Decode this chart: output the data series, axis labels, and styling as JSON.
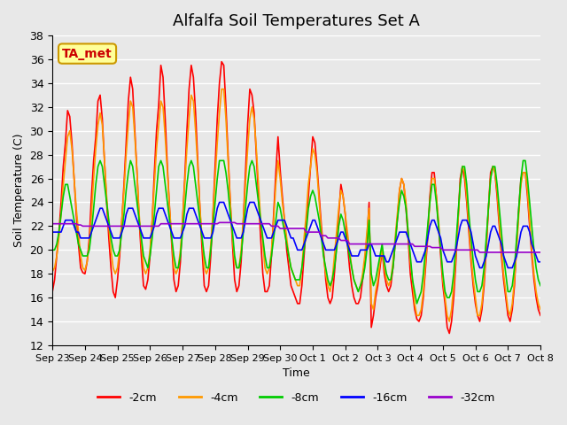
{
  "title": "Alfalfa Soil Temperatures Set A",
  "xlabel": "Time",
  "ylabel": "Soil Temperature (C)",
  "ylim": [
    12,
    38
  ],
  "yticks": [
    12,
    14,
    16,
    18,
    20,
    22,
    24,
    26,
    28,
    30,
    32,
    34,
    36,
    38
  ],
  "xtick_labels": [
    "Sep 23",
    "Sep 24",
    "Sep 25",
    "Sep 26",
    "Sep 27",
    "Sep 28",
    "Sep 29",
    "Sep 30",
    "Oct 1",
    "Oct 2",
    "Oct 3",
    "Oct 4",
    "Oct 5",
    "Oct 6",
    "Oct 7",
    "Oct 8"
  ],
  "colors": {
    "-2cm": "#ff0000",
    "-4cm": "#ff9900",
    "-8cm": "#00cc00",
    "-16cm": "#0000ff",
    "-32cm": "#9900cc"
  },
  "annotation_text": "TA_met",
  "annotation_color": "#cc0000",
  "annotation_bg": "#ffff99",
  "annotation_border": "#cc9900",
  "background_color": "#e8e8e8",
  "plot_bg": "#e8e8e8",
  "grid_color": "#ffffff",
  "n_points": 320,
  "series": {
    "-2cm": [
      16.5,
      17.5,
      19.5,
      21.5,
      24.0,
      27.0,
      29.0,
      31.7,
      31.2,
      29.0,
      26.0,
      23.0,
      20.5,
      18.5,
      18.1,
      18.0,
      19.0,
      21.0,
      24.5,
      27.5,
      29.5,
      32.5,
      33.0,
      31.0,
      27.5,
      24.0,
      21.0,
      18.5,
      16.5,
      16.0,
      17.5,
      19.5,
      22.5,
      25.5,
      29.0,
      32.5,
      34.5,
      33.5,
      30.0,
      26.5,
      22.5,
      19.5,
      17.0,
      16.7,
      17.5,
      19.5,
      22.5,
      26.5,
      30.0,
      32.2,
      35.5,
      34.5,
      31.0,
      27.0,
      23.5,
      20.5,
      17.5,
      16.5,
      17.0,
      19.0,
      22.5,
      26.0,
      30.0,
      33.5,
      35.5,
      34.5,
      31.5,
      27.5,
      23.5,
      20.0,
      17.0,
      16.5,
      17.0,
      19.5,
      23.0,
      27.0,
      31.0,
      34.0,
      35.8,
      35.5,
      32.0,
      28.0,
      24.0,
      20.5,
      17.5,
      16.5,
      17.0,
      19.0,
      22.5,
      26.5,
      30.5,
      33.5,
      33.0,
      31.5,
      28.0,
      24.5,
      21.0,
      18.0,
      16.5,
      16.5,
      17.0,
      19.5,
      23.0,
      26.5,
      29.5,
      26.7,
      24.5,
      22.5,
      20.0,
      18.5,
      17.0,
      16.5,
      16.0,
      15.5,
      15.5,
      17.0,
      19.5,
      22.0,
      24.5,
      27.0,
      29.5,
      29.0,
      27.0,
      24.5,
      22.0,
      20.0,
      17.5,
      16.0,
      15.5,
      16.0,
      18.0,
      20.5,
      23.0,
      25.5,
      24.5,
      23.0,
      20.5,
      18.5,
      17.0,
      16.0,
      15.5,
      15.5,
      16.0,
      17.5,
      19.0,
      21.0,
      24.0,
      13.5,
      14.5,
      16.0,
      17.0,
      18.5,
      20.0,
      18.0,
      17.0,
      16.5,
      17.0,
      18.5,
      20.5,
      22.5,
      25.0,
      26.0,
      25.5,
      23.5,
      21.0,
      18.0,
      16.5,
      15.0,
      14.2,
      14.0,
      14.5,
      16.0,
      18.5,
      21.0,
      24.5,
      26.5,
      26.5,
      24.5,
      22.0,
      19.5,
      17.0,
      15.5,
      13.5,
      13.0,
      14.0,
      16.0,
      19.0,
      22.5,
      26.0,
      27.0,
      26.0,
      24.0,
      21.5,
      19.0,
      17.0,
      15.5,
      14.5,
      14.0,
      15.0,
      17.0,
      20.0,
      23.5,
      26.5,
      27.0,
      26.5,
      24.5,
      22.0,
      19.5,
      17.5,
      16.0,
      14.5,
      14.0,
      15.0,
      17.0,
      20.5,
      23.5,
      26.0,
      26.5,
      26.5,
      24.5,
      22.0,
      19.5,
      17.5,
      16.0,
      15.0,
      14.5
    ],
    "-4cm": [
      18.2,
      18.5,
      19.5,
      21.0,
      23.0,
      25.5,
      27.5,
      29.5,
      30.0,
      28.5,
      26.0,
      23.5,
      21.5,
      19.5,
      18.5,
      18.3,
      19.0,
      20.5,
      23.0,
      26.0,
      28.5,
      30.5,
      31.5,
      30.5,
      27.5,
      24.5,
      22.0,
      20.0,
      18.5,
      18.0,
      18.5,
      20.0,
      22.5,
      25.0,
      28.0,
      30.5,
      32.5,
      32.0,
      29.5,
      26.5,
      23.0,
      20.5,
      18.5,
      18.0,
      18.5,
      20.0,
      22.5,
      25.5,
      28.5,
      30.5,
      32.5,
      32.0,
      29.5,
      26.5,
      23.5,
      21.0,
      18.5,
      18.0,
      18.5,
      20.0,
      22.5,
      25.5,
      28.5,
      31.0,
      33.0,
      32.5,
      30.0,
      27.0,
      23.5,
      21.0,
      18.5,
      18.0,
      18.5,
      20.5,
      23.0,
      26.0,
      29.0,
      31.5,
      33.5,
      33.5,
      31.0,
      27.5,
      24.0,
      21.0,
      19.0,
      18.5,
      18.5,
      20.0,
      22.5,
      25.5,
      28.5,
      31.0,
      32.0,
      31.0,
      28.5,
      25.5,
      22.5,
      20.5,
      18.5,
      18.0,
      18.5,
      20.0,
      22.5,
      25.5,
      27.5,
      26.0,
      24.0,
      22.5,
      21.0,
      19.5,
      18.5,
      18.0,
      17.5,
      17.0,
      17.0,
      18.5,
      21.0,
      23.0,
      25.5,
      27.0,
      28.5,
      28.0,
      26.5,
      24.0,
      21.5,
      19.5,
      18.0,
      17.0,
      16.5,
      17.5,
      19.5,
      21.5,
      23.5,
      25.0,
      24.5,
      23.0,
      21.5,
      20.0,
      18.5,
      17.5,
      17.0,
      16.5,
      17.0,
      18.0,
      19.5,
      21.5,
      23.5,
      15.5,
      15.0,
      16.5,
      17.5,
      19.0,
      20.0,
      18.5,
      17.5,
      17.0,
      17.5,
      19.0,
      21.0,
      23.0,
      25.0,
      26.0,
      25.5,
      24.0,
      21.5,
      19.0,
      17.5,
      15.5,
      14.5,
      14.5,
      15.0,
      16.5,
      19.0,
      21.5,
      24.0,
      26.0,
      26.0,
      24.5,
      22.5,
      20.0,
      17.5,
      16.0,
      14.5,
      14.0,
      15.0,
      17.0,
      19.5,
      22.5,
      25.5,
      27.0,
      26.5,
      24.5,
      22.0,
      19.5,
      17.5,
      16.0,
      14.5,
      14.5,
      15.5,
      17.5,
      20.5,
      23.5,
      26.0,
      27.0,
      26.5,
      25.0,
      22.5,
      20.0,
      18.0,
      16.5,
      15.0,
      14.5,
      15.5,
      17.5,
      20.0,
      23.0,
      25.5,
      26.5,
      26.5,
      25.0,
      22.5,
      20.0,
      18.0,
      16.5,
      15.5,
      15.0
    ],
    "-8cm": [
      20.0,
      20.0,
      20.5,
      21.5,
      23.0,
      24.5,
      25.5,
      25.5,
      24.5,
      23.5,
      22.5,
      21.5,
      20.5,
      20.0,
      19.5,
      19.5,
      19.5,
      20.0,
      21.5,
      23.5,
      25.5,
      27.0,
      27.5,
      27.0,
      25.5,
      24.0,
      22.5,
      21.0,
      20.0,
      19.5,
      19.5,
      20.0,
      21.5,
      23.0,
      25.0,
      26.5,
      27.5,
      27.0,
      25.5,
      24.0,
      22.5,
      21.0,
      19.5,
      19.0,
      18.5,
      19.5,
      21.0,
      23.0,
      25.0,
      27.0,
      27.5,
      27.0,
      25.5,
      24.0,
      22.5,
      21.0,
      19.5,
      18.5,
      18.5,
      19.5,
      21.5,
      23.5,
      25.5,
      27.0,
      27.5,
      27.0,
      25.5,
      24.0,
      22.5,
      21.0,
      19.5,
      18.5,
      18.5,
      20.0,
      22.0,
      24.0,
      26.0,
      27.5,
      27.5,
      27.5,
      26.5,
      25.0,
      23.0,
      21.5,
      19.5,
      18.5,
      18.5,
      19.5,
      21.5,
      23.5,
      25.5,
      27.0,
      27.5,
      27.0,
      25.5,
      24.0,
      22.5,
      21.0,
      19.5,
      18.5,
      18.5,
      19.5,
      21.0,
      22.5,
      24.0,
      23.5,
      22.5,
      21.5,
      20.5,
      19.5,
      18.5,
      18.0,
      17.5,
      17.5,
      17.5,
      18.5,
      20.0,
      21.5,
      23.5,
      24.5,
      25.0,
      24.5,
      23.5,
      22.5,
      21.0,
      19.5,
      18.5,
      17.5,
      17.0,
      17.5,
      18.5,
      20.0,
      22.0,
      23.0,
      22.5,
      21.5,
      20.5,
      19.5,
      18.5,
      17.5,
      17.0,
      16.5,
      17.0,
      17.5,
      18.5,
      20.0,
      22.5,
      18.0,
      17.0,
      17.5,
      18.5,
      19.5,
      20.5,
      19.0,
      18.0,
      17.5,
      17.5,
      18.5,
      20.5,
      22.5,
      24.0,
      25.0,
      24.5,
      23.5,
      21.5,
      19.5,
      17.5,
      16.5,
      15.5,
      16.0,
      16.5,
      18.0,
      20.0,
      22.0,
      24.0,
      25.5,
      25.5,
      24.0,
      22.0,
      20.0,
      18.0,
      16.5,
      16.0,
      16.0,
      16.5,
      18.0,
      20.5,
      23.0,
      25.5,
      27.0,
      27.0,
      25.5,
      23.0,
      21.0,
      19.0,
      17.5,
      16.5,
      16.5,
      17.0,
      18.5,
      21.0,
      23.5,
      26.0,
      27.0,
      27.0,
      25.5,
      23.5,
      21.5,
      19.5,
      18.0,
      16.5,
      16.5,
      17.0,
      18.5,
      21.0,
      23.5,
      26.0,
      27.5,
      27.5,
      26.0,
      24.0,
      22.0,
      20.0,
      18.5,
      17.5,
      17.0
    ],
    "-16cm": [
      21.5,
      21.5,
      21.5,
      21.5,
      21.5,
      22.0,
      22.5,
      22.5,
      22.5,
      22.5,
      22.0,
      21.5,
      21.5,
      21.0,
      21.0,
      21.0,
      21.0,
      21.0,
      21.5,
      22.0,
      22.5,
      23.0,
      23.5,
      23.5,
      23.0,
      22.5,
      22.0,
      21.5,
      21.0,
      21.0,
      21.0,
      21.0,
      21.5,
      22.0,
      23.0,
      23.5,
      23.5,
      23.5,
      23.0,
      22.5,
      22.0,
      21.5,
      21.0,
      21.0,
      21.0,
      21.0,
      21.5,
      22.0,
      23.0,
      23.5,
      23.5,
      23.5,
      23.0,
      22.5,
      22.0,
      21.5,
      21.0,
      21.0,
      21.0,
      21.0,
      21.5,
      22.0,
      23.0,
      23.5,
      23.5,
      23.5,
      23.0,
      22.5,
      22.0,
      21.5,
      21.0,
      21.0,
      21.0,
      21.0,
      21.5,
      22.5,
      23.5,
      24.0,
      24.0,
      24.0,
      23.5,
      23.0,
      22.5,
      22.0,
      21.5,
      21.0,
      21.0,
      21.0,
      21.5,
      22.5,
      23.5,
      24.0,
      24.0,
      24.0,
      23.5,
      23.0,
      22.5,
      22.0,
      21.5,
      21.0,
      21.0,
      21.0,
      21.5,
      22.0,
      22.5,
      22.5,
      22.5,
      22.5,
      22.0,
      21.5,
      21.0,
      21.0,
      20.5,
      20.0,
      20.0,
      20.0,
      20.5,
      21.0,
      21.5,
      22.0,
      22.5,
      22.5,
      22.0,
      21.5,
      21.0,
      20.5,
      20.0,
      20.0,
      20.0,
      20.0,
      20.0,
      20.5,
      21.0,
      21.5,
      21.5,
      21.0,
      20.5,
      20.0,
      19.5,
      19.5,
      19.5,
      19.5,
      20.0,
      20.0,
      20.0,
      20.0,
      20.5,
      20.5,
      20.0,
      19.5,
      19.5,
      19.5,
      19.5,
      19.5,
      19.0,
      19.0,
      19.5,
      20.0,
      20.5,
      21.0,
      21.5,
      21.5,
      21.5,
      21.5,
      21.0,
      20.5,
      20.0,
      19.5,
      19.0,
      19.0,
      19.0,
      19.5,
      20.0,
      21.0,
      22.0,
      22.5,
      22.5,
      22.0,
      21.5,
      21.0,
      20.0,
      19.5,
      19.0,
      19.0,
      19.0,
      19.5,
      20.0,
      21.0,
      22.0,
      22.5,
      22.5,
      22.5,
      22.0,
      21.5,
      20.5,
      19.5,
      19.0,
      18.5,
      18.5,
      19.0,
      19.5,
      20.5,
      21.5,
      22.0,
      22.0,
      21.5,
      21.0,
      20.5,
      19.5,
      19.0,
      18.5,
      18.5,
      18.5,
      19.0,
      19.5,
      20.5,
      21.5,
      22.0,
      22.0,
      22.0,
      21.5,
      20.5,
      20.0,
      19.5,
      19.0,
      19.0
    ],
    "-32cm": [
      22.2,
      22.2,
      22.2,
      22.2,
      22.2,
      22.2,
      22.2,
      22.2,
      22.2,
      22.2,
      22.2,
      22.2,
      22.1,
      22.1,
      22.0,
      22.0,
      22.0,
      22.0,
      22.0,
      22.0,
      22.0,
      22.0,
      22.0,
      22.0,
      22.0,
      22.0,
      22.0,
      22.0,
      22.0,
      22.0,
      22.0,
      22.0,
      22.0,
      22.0,
      22.0,
      22.0,
      22.0,
      22.0,
      22.0,
      22.0,
      22.0,
      22.0,
      22.0,
      22.0,
      22.0,
      22.0,
      22.0,
      22.0,
      22.0,
      22.0,
      22.2,
      22.2,
      22.2,
      22.2,
      22.2,
      22.2,
      22.2,
      22.2,
      22.2,
      22.2,
      22.2,
      22.2,
      22.2,
      22.2,
      22.2,
      22.2,
      22.2,
      22.2,
      22.2,
      22.2,
      22.2,
      22.2,
      22.2,
      22.2,
      22.2,
      22.2,
      22.2,
      22.3,
      22.3,
      22.3,
      22.3,
      22.3,
      22.3,
      22.3,
      22.3,
      22.2,
      22.2,
      22.2,
      22.2,
      22.2,
      22.2,
      22.2,
      22.2,
      22.2,
      22.2,
      22.2,
      22.2,
      22.2,
      22.2,
      22.2,
      22.2,
      22.0,
      22.0,
      22.0,
      22.0,
      21.8,
      21.8,
      21.8,
      21.8,
      21.8,
      21.8,
      21.8,
      21.8,
      21.8,
      21.8,
      21.8,
      21.8,
      21.5,
      21.5,
      21.5,
      21.5,
      21.5,
      21.5,
      21.5,
      21.2,
      21.2,
      21.2,
      21.0,
      21.0,
      21.0,
      21.0,
      21.0,
      21.0,
      20.8,
      20.8,
      20.8,
      20.8,
      20.5,
      20.5,
      20.5,
      20.5,
      20.5,
      20.5,
      20.5,
      20.5,
      20.5,
      20.5,
      20.5,
      20.5,
      20.5,
      20.5,
      20.5,
      20.5,
      20.5,
      20.5,
      20.5,
      20.5,
      20.5,
      20.5,
      20.5,
      20.5,
      20.5,
      20.5,
      20.5,
      20.5,
      20.5,
      20.5,
      20.3,
      20.3,
      20.3,
      20.3,
      20.3,
      20.3,
      20.3,
      20.3,
      20.2,
      20.2,
      20.2,
      20.2,
      20.2,
      20.0,
      20.0,
      20.0,
      20.0,
      20.0,
      20.0,
      20.0,
      20.0,
      20.0,
      20.0,
      20.0,
      20.0,
      20.0,
      20.0,
      20.0,
      20.0,
      20.0,
      19.8,
      19.8,
      19.8,
      19.8,
      19.8,
      19.8,
      19.8,
      19.8,
      19.8,
      19.8,
      19.8,
      19.8,
      19.8,
      19.8,
      19.8,
      19.8,
      19.8,
      19.8,
      19.8,
      19.8,
      19.8,
      19.8,
      19.8,
      19.8,
      19.8,
      19.8,
      19.8,
      19.8,
      19.8
    ]
  }
}
